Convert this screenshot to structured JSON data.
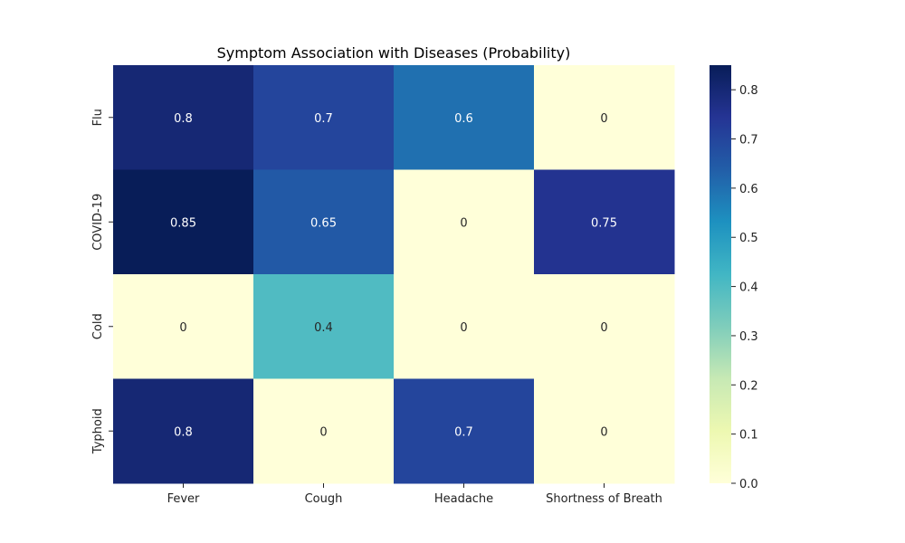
{
  "chart_data": {
    "type": "heatmap",
    "title": "Symptom Association with Diseases (Probability)",
    "rows": [
      "Flu",
      "COVID-19",
      "Cold",
      "Typhoid"
    ],
    "columns": [
      "Fever",
      "Cough",
      "Headache",
      "Shortness of Breath"
    ],
    "values": [
      [
        0.8,
        0.7,
        0.6,
        0
      ],
      [
        0.85,
        0.65,
        0,
        0.75
      ],
      [
        0,
        0.4,
        0,
        0
      ],
      [
        0.8,
        0,
        0.7,
        0
      ]
    ],
    "value_labels": [
      [
        "0.8",
        "0.7",
        "0.6",
        "0"
      ],
      [
        "0.85",
        "0.65",
        "0",
        "0.75"
      ],
      [
        "0",
        "0.4",
        "0",
        "0"
      ],
      [
        "0.8",
        "0",
        "0.7",
        "0"
      ]
    ],
    "colorbar": {
      "range": [
        0,
        0.85
      ],
      "ticks": [
        0,
        0.1,
        0.2,
        0.3,
        0.4,
        0.5,
        0.6,
        0.7,
        0.8
      ],
      "tick_labels": [
        "0.0",
        "0.1",
        "0.2",
        "0.3",
        "0.4",
        "0.5",
        "0.6",
        "0.7",
        "0.8"
      ]
    },
    "colormap": "YlGnBu",
    "colormap_stops": [
      "#ffffd9",
      "#edf8b1",
      "#c7e9b4",
      "#7fcdbb",
      "#41b6c4",
      "#1d91c0",
      "#225ea8",
      "#253494",
      "#081d58"
    ]
  }
}
